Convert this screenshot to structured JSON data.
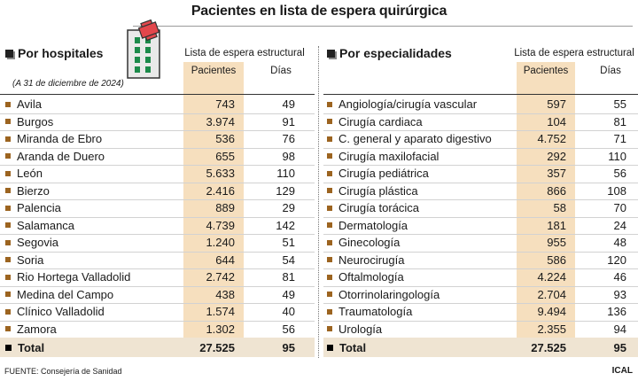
{
  "title": "Pacientes en lista de espera quirúrgica",
  "left": {
    "heading": "Por hospitales",
    "note": "(A 31 de diciembre de 2024)",
    "group_label": "Lista de espera estructural",
    "col_patients": "Pacientes",
    "col_days": "Días",
    "rows": [
      {
        "name": "Avila",
        "patients": "743",
        "days": "49"
      },
      {
        "name": "Burgos",
        "patients": "3.974",
        "days": "91"
      },
      {
        "name": "Miranda de Ebro",
        "patients": "536",
        "days": "76"
      },
      {
        "name": "Aranda de Duero",
        "patients": "655",
        "days": "98"
      },
      {
        "name": "León",
        "patients": "5.633",
        "days": "110"
      },
      {
        "name": "Bierzo",
        "patients": "2.416",
        "days": "129"
      },
      {
        "name": "Palencia",
        "patients": "889",
        "days": "29"
      },
      {
        "name": "Salamanca",
        "patients": "4.739",
        "days": "142"
      },
      {
        "name": "Segovia",
        "patients": "1.240",
        "days": "51"
      },
      {
        "name": "Soria",
        "patients": "644",
        "days": "54"
      },
      {
        "name": "Rio Hortega Valladolid",
        "patients": "2.742",
        "days": "81"
      },
      {
        "name": "Medina del Campo",
        "patients": "438",
        "days": "49"
      },
      {
        "name": "Clínico Valladolid",
        "patients": "1.574",
        "days": "40"
      },
      {
        "name": "Zamora",
        "patients": "1.302",
        "days": "56"
      }
    ],
    "total": {
      "name": "Total",
      "patients": "27.525",
      "days": "95"
    }
  },
  "right": {
    "heading": "Por especialidades",
    "group_label": "Lista de espera estructural",
    "col_patients": "Pacientes",
    "col_days": "Días",
    "rows": [
      {
        "name": "Angiología/cirugía vascular",
        "patients": "597",
        "days": "55"
      },
      {
        "name": "Cirugía cardiaca",
        "patients": "104",
        "days": "81"
      },
      {
        "name": "C. general y aparato digestivo",
        "patients": "4.752",
        "days": "71"
      },
      {
        "name": "Cirugía maxilofacial",
        "patients": "292",
        "days": "110"
      },
      {
        "name": "Cirugía pediátrica",
        "patients": "357",
        "days": "56"
      },
      {
        "name": "Cirugía plástica",
        "patients": "866",
        "days": "108"
      },
      {
        "name": "Cirugía torácica",
        "patients": "58",
        "days": "70"
      },
      {
        "name": "Dermatología",
        "patients": "181",
        "days": "24"
      },
      {
        "name": "Ginecología",
        "patients": "955",
        "days": "48"
      },
      {
        "name": "Neurocirugía",
        "patients": "586",
        "days": "120"
      },
      {
        "name": "Oftalmología",
        "patients": "4.224",
        "days": "46"
      },
      {
        "name": "Otorrinolaringología",
        "patients": "2.704",
        "days": "93"
      },
      {
        "name": "Traumatología",
        "patients": "9.494",
        "days": "136"
      },
      {
        "name": "Urología",
        "patients": "2.355",
        "days": "94"
      }
    ],
    "total": {
      "name": "Total",
      "patients": "27.525",
      "days": "95"
    }
  },
  "footer": "FUENTE: Consejería de Sanidad",
  "brand": "ICAL",
  "colors": {
    "accent": "#f6dfbe",
    "bullet": "#9c6420",
    "total_bg": "#efe4d2"
  },
  "icons": [
    "hospital-icon"
  ]
}
